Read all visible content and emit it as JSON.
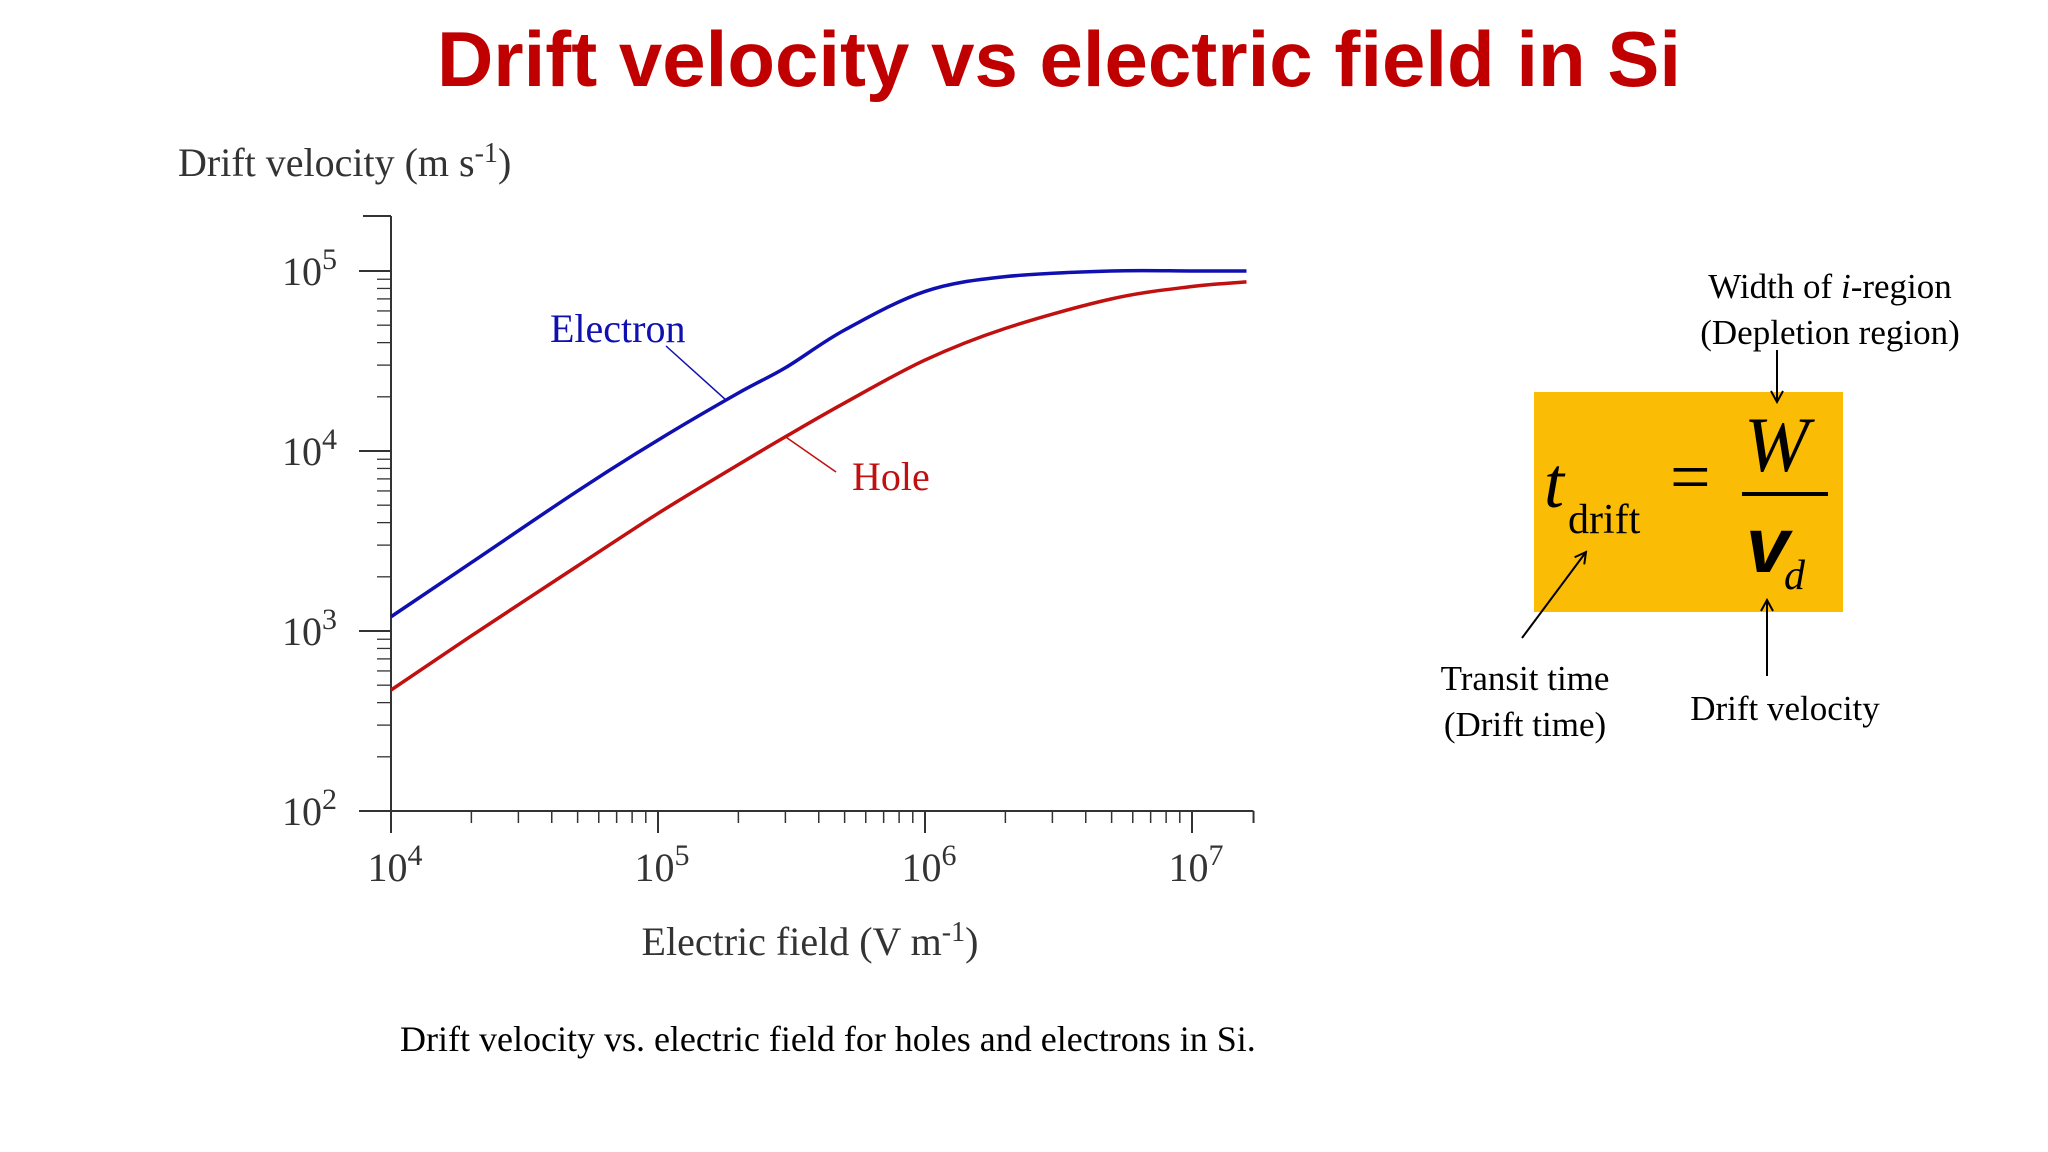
{
  "slide": {
    "title": "Drift velocity vs electric field in Si",
    "caption": "Drift velocity vs. electric field for holes and electrons in Si."
  },
  "chart_data": {
    "type": "line",
    "title": "",
    "xlabel": "Electric field (V m⁻¹)",
    "ylabel": "Drift velocity (m s⁻¹)",
    "xscale": "log",
    "yscale": "log",
    "xlim": [
      10000,
      17000000
    ],
    "ylim": [
      100,
      100000
    ],
    "grid": false,
    "xticks": [
      {
        "value": 10000,
        "base": "10",
        "exp": "4"
      },
      {
        "value": 100000,
        "base": "10",
        "exp": "5"
      },
      {
        "value": 1000000,
        "base": "10",
        "exp": "6"
      },
      {
        "value": 10000000,
        "base": "10",
        "exp": "7"
      }
    ],
    "yticks": [
      {
        "value": 100,
        "base": "10",
        "exp": "2"
      },
      {
        "value": 1000,
        "base": "10",
        "exp": "3"
      },
      {
        "value": 10000,
        "base": "10",
        "exp": "4"
      },
      {
        "value": 100000,
        "base": "10",
        "exp": "5"
      }
    ],
    "series": [
      {
        "name": "Electron",
        "color": "#1010b0",
        "x": [
          10000,
          20000,
          50000,
          100000,
          200000,
          300000,
          500000,
          1000000,
          2000000,
          5000000,
          10000000,
          16000000
        ],
        "y": [
          1200,
          2400,
          6000,
          11500,
          21000,
          29000,
          47000,
          77000,
          93000,
          100000,
          100000,
          100000
        ]
      },
      {
        "name": "Hole",
        "color": "#c01010",
        "x": [
          10000,
          20000,
          50000,
          100000,
          200000,
          300000,
          500000,
          1000000,
          2000000,
          5000000,
          10000000,
          16000000
        ],
        "y": [
          470,
          940,
          2300,
          4500,
          8400,
          12000,
          18500,
          32000,
          48000,
          70000,
          82000,
          87000
        ]
      }
    ],
    "annotations": [
      {
        "text": "Electron",
        "series": "Electron"
      },
      {
        "text": "Hole",
        "series": "Hole"
      }
    ]
  },
  "formula": {
    "lhs": "t",
    "lhs_sub": "drift",
    "eq": "=",
    "numerator": "W",
    "denominator": "v",
    "denominator_sub": "d",
    "box_color": "#fbbc05"
  },
  "annotations": {
    "width_label_1": "Width of ",
    "width_label_i": "i",
    "width_label_2": "-region",
    "width_label_line2": "(Depletion region)",
    "transit_line1": "Transit time",
    "transit_line2": "(Drift time)",
    "drift_velocity": "Drift velocity"
  }
}
